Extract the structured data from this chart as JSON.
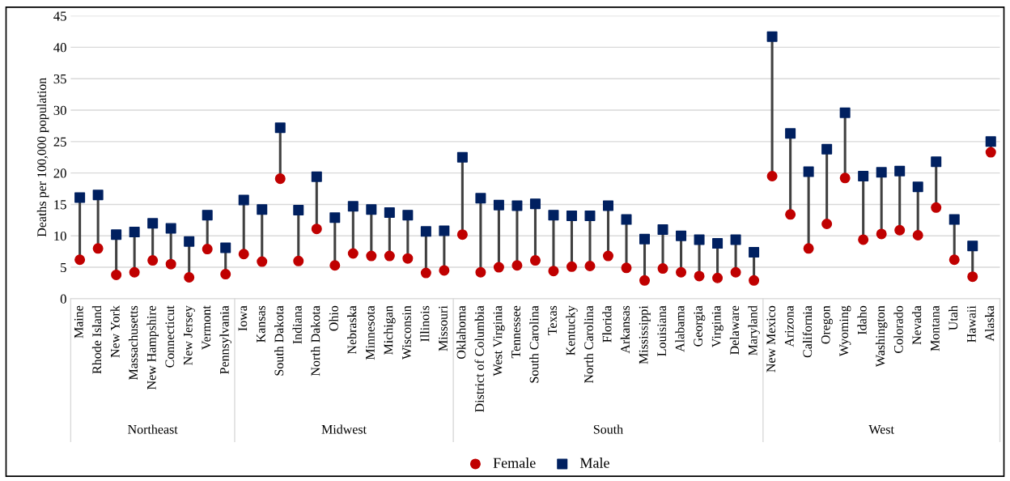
{
  "chart_data": {
    "type": "scatter",
    "ylabel": "Deaths per 100,000 population",
    "categories": [
      "Maine",
      "Rhode Island",
      "New York",
      "Massachusetts",
      "New Hampshire",
      "Connecticut",
      "New Jersey",
      "Vermont",
      "Pennsylvania",
      "Iowa",
      "Kansas",
      "South Dakota",
      "Indiana",
      "North Dakota",
      "Ohio",
      "Nebraska",
      "Minnesota",
      "Michigan",
      "Wisconsin",
      "Illinois",
      "Missouri",
      "Oklahoma",
      "District of Columbia",
      "West Virginia",
      "Tennessee",
      "South Carolina",
      "Texas",
      "Kentucky",
      "North Carolina",
      "Florida",
      "Arkansas",
      "Mississippi",
      "Louisiana",
      "Alabama",
      "Georgia",
      "Virginia",
      "Delaware",
      "Maryland",
      "New Mexico",
      "Arizona",
      "California",
      "Oregon",
      "Wyoming",
      "Idaho",
      "Washington",
      "Colorado",
      "Nevada",
      "Montana",
      "Utah",
      "Hawaii",
      "Alaska"
    ],
    "series": [
      {
        "name": "Female",
        "color": "#c00000",
        "marker": "circle",
        "values": [
          6.2,
          8.0,
          3.8,
          4.2,
          6.1,
          5.5,
          3.4,
          7.9,
          3.9,
          7.1,
          5.9,
          19.1,
          6.0,
          11.1,
          5.3,
          7.2,
          6.8,
          6.8,
          6.4,
          4.1,
          4.5,
          10.2,
          4.2,
          5.0,
          5.3,
          6.1,
          4.4,
          5.1,
          5.2,
          6.8,
          4.9,
          2.9,
          4.8,
          4.2,
          3.6,
          3.3,
          4.2,
          2.9,
          19.5,
          13.4,
          8.0,
          11.9,
          19.2,
          9.4,
          10.3,
          10.9,
          10.1,
          14.5,
          6.2,
          3.5,
          23.3
        ]
      },
      {
        "name": "Male",
        "color": "#002060",
        "marker": "square",
        "values": [
          16.1,
          16.5,
          10.2,
          10.6,
          12.0,
          11.2,
          9.1,
          13.3,
          8.1,
          15.7,
          14.2,
          27.2,
          14.1,
          19.4,
          12.9,
          14.7,
          14.2,
          13.7,
          13.3,
          10.7,
          10.8,
          22.5,
          16.0,
          14.9,
          14.8,
          15.1,
          13.3,
          13.2,
          13.2,
          14.8,
          12.6,
          9.5,
          11.0,
          10.0,
          9.4,
          8.8,
          9.4,
          7.4,
          41.7,
          26.3,
          20.2,
          23.8,
          29.6,
          19.5,
          20.1,
          20.3,
          17.8,
          21.8,
          12.6,
          8.4,
          25.0
        ]
      }
    ],
    "annotations": [
      "Northeast",
      "Midwest",
      "South",
      "West"
    ],
    "ylim": [
      0,
      45
    ],
    "yticks": [
      0,
      5,
      10,
      15,
      20,
      25,
      30,
      35,
      40,
      45
    ],
    "grid": "y",
    "legend": "bottom"
  }
}
